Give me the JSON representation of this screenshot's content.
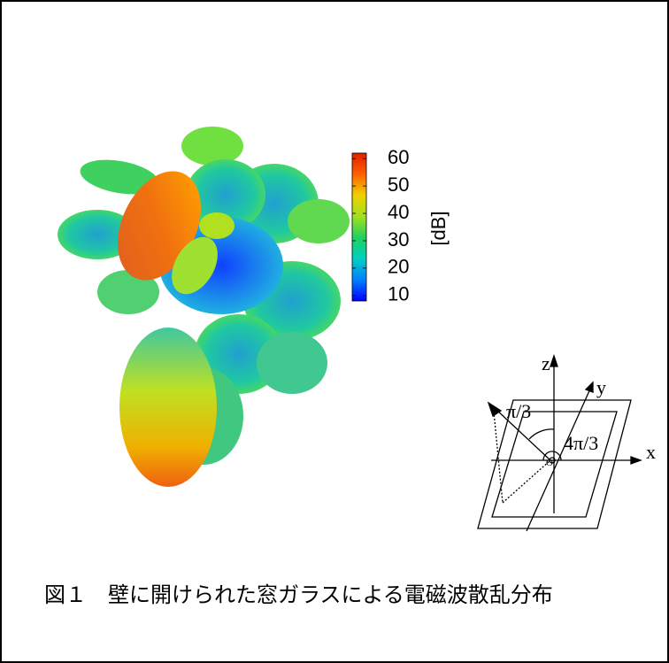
{
  "figure": {
    "colorbar": {
      "label": "[dB]",
      "lim": [
        8,
        62
      ],
      "ticks": [
        10,
        20,
        30,
        40,
        50,
        60
      ],
      "colors": [
        "#0000ff",
        "#0080ff",
        "#00d0c0",
        "#20d060",
        "#a0e020",
        "#f0d000",
        "#ff6000",
        "#e02000"
      ]
    },
    "diagram": {
      "z": "z",
      "y": "y",
      "x": "x",
      "origin": "O",
      "theta": "π/3",
      "phi": "4π/3"
    },
    "caption": "図１　壁に開けられた窓ガラスによる電磁波散乱分布"
  }
}
